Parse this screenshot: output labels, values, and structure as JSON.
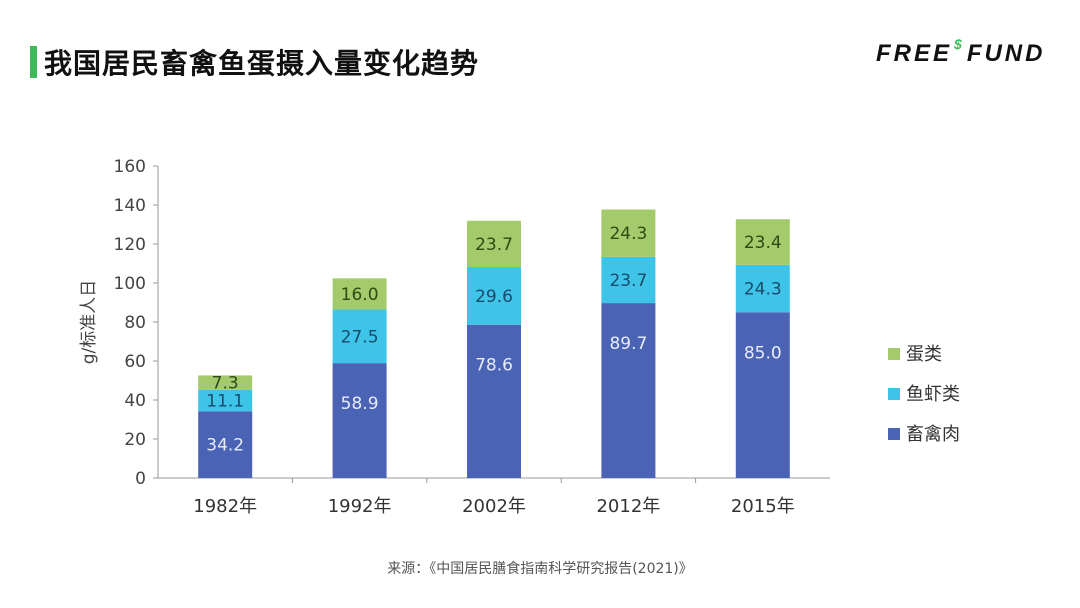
{
  "header": {
    "title": "我国居民畜禽鱼蛋摄入量变化趋势",
    "logo": "FREE$FUND"
  },
  "source": "来源：《中国居民膳食指南科学研究报告(2021)》",
  "colors": {
    "accent": "#3dbb5a",
    "meat": "#4a63b5",
    "fish": "#3ec4e8",
    "egg": "#a3cb6b"
  },
  "chart_data": {
    "type": "bar",
    "stacked": true,
    "title": "",
    "xlabel": "",
    "ylabel": "g/标准人日",
    "ylim": [
      0,
      160
    ],
    "yticks": [
      0,
      20,
      40,
      60,
      80,
      100,
      120,
      140,
      160
    ],
    "categories": [
      "1982年",
      "1992年",
      "2002年",
      "2012年",
      "2015年"
    ],
    "series": [
      {
        "name": "畜禽肉",
        "color": "#4a63b5",
        "values": [
          34.2,
          58.9,
          78.6,
          89.7,
          85.0
        ]
      },
      {
        "name": "鱼虾类",
        "color": "#3ec4e8",
        "values": [
          11.1,
          27.5,
          29.6,
          23.7,
          24.3
        ]
      },
      {
        "name": "蛋类",
        "color": "#a3cb6b",
        "values": [
          7.3,
          16.0,
          23.7,
          24.3,
          23.4
        ]
      }
    ],
    "legend_position": "right",
    "grid": false
  }
}
